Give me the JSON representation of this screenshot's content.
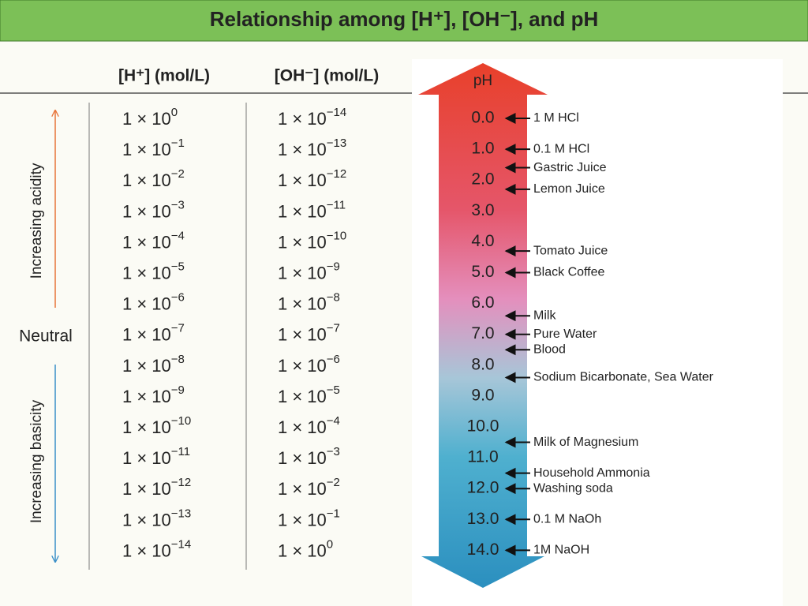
{
  "title": "Relationship among [H⁺], [OH⁻], and pH",
  "columns": [
    "[H⁺] (mol/L)",
    "[OH⁻] (mol/L)"
  ],
  "rows": [
    [
      [
        "1 × 10",
        "0"
      ],
      [
        "1 × 10",
        "−14"
      ]
    ],
    [
      [
        "1 × 10",
        "−1"
      ],
      [
        "1 × 10",
        "−13"
      ]
    ],
    [
      [
        "1 × 10",
        "−2"
      ],
      [
        "1 × 10",
        "−12"
      ]
    ],
    [
      [
        "1 × 10",
        "−3"
      ],
      [
        "1 × 10",
        "−11"
      ]
    ],
    [
      [
        "1 × 10",
        "−4"
      ],
      [
        "1 × 10",
        "−10"
      ]
    ],
    [
      [
        "1 × 10",
        "−5"
      ],
      [
        "1 × 10",
        "−9"
      ]
    ],
    [
      [
        "1 × 10",
        "−6"
      ],
      [
        "1 × 10",
        "−8"
      ]
    ],
    [
      [
        "1 × 10",
        "−7"
      ],
      [
        "1 × 10",
        "−7"
      ]
    ],
    [
      [
        "1 × 10",
        "−8"
      ],
      [
        "1 × 10",
        "−6"
      ]
    ],
    [
      [
        "1 × 10",
        "−9"
      ],
      [
        "1 × 10",
        "−5"
      ]
    ],
    [
      [
        "1 × 10",
        "−10"
      ],
      [
        "1 × 10",
        "−4"
      ]
    ],
    [
      [
        "1 × 10",
        "−11"
      ],
      [
        "1 × 10",
        "−3"
      ]
    ],
    [
      [
        "1 × 10",
        "−12"
      ],
      [
        "1 × 10",
        "−2"
      ]
    ],
    [
      [
        "1 × 10",
        "−13"
      ],
      [
        "1 × 10",
        "−1"
      ]
    ],
    [
      [
        "1 × 10",
        "−14"
      ],
      [
        "1 × 10",
        "0"
      ]
    ]
  ],
  "side_labels": {
    "acidity": "Increasing acidity",
    "neutral": "Neutral",
    "basicity": "Increasing basicity"
  },
  "scale": {
    "label": "pH",
    "ticks": [
      "0.0",
      "1.0",
      "2.0",
      "3.0",
      "4.0",
      "5.0",
      "6.0",
      "7.0",
      "8.0",
      "9.0",
      "10.0",
      "11.0",
      "12.0",
      "13.0",
      "14.0"
    ]
  },
  "substances": [
    {
      "label": "1 M HCl",
      "ph": 0
    },
    {
      "label": "0.1 M HCl",
      "ph": 1
    },
    {
      "label": "Gastric Juice",
      "ph": 1.6
    },
    {
      "label": "Lemon Juice",
      "ph": 2.3
    },
    {
      "label": "Tomato Juice",
      "ph": 4.3
    },
    {
      "label": "Black Coffee",
      "ph": 5
    },
    {
      "label": "Milk",
      "ph": 6.4
    },
    {
      "label": "Pure Water",
      "ph": 7
    },
    {
      "label": "Blood",
      "ph": 7.5
    },
    {
      "label": "Sodium Bicarbonate, Sea Water",
      "ph": 8.4
    },
    {
      "label": "Milk of Magnesium",
      "ph": 10.5
    },
    {
      "label": "Household Ammonia",
      "ph": 11.5
    },
    {
      "label": "Washing soda",
      "ph": 12
    },
    {
      "label": "0.1 M NaOh",
      "ph": 13
    },
    {
      "label": "1M NaOH",
      "ph": 14
    }
  ]
}
